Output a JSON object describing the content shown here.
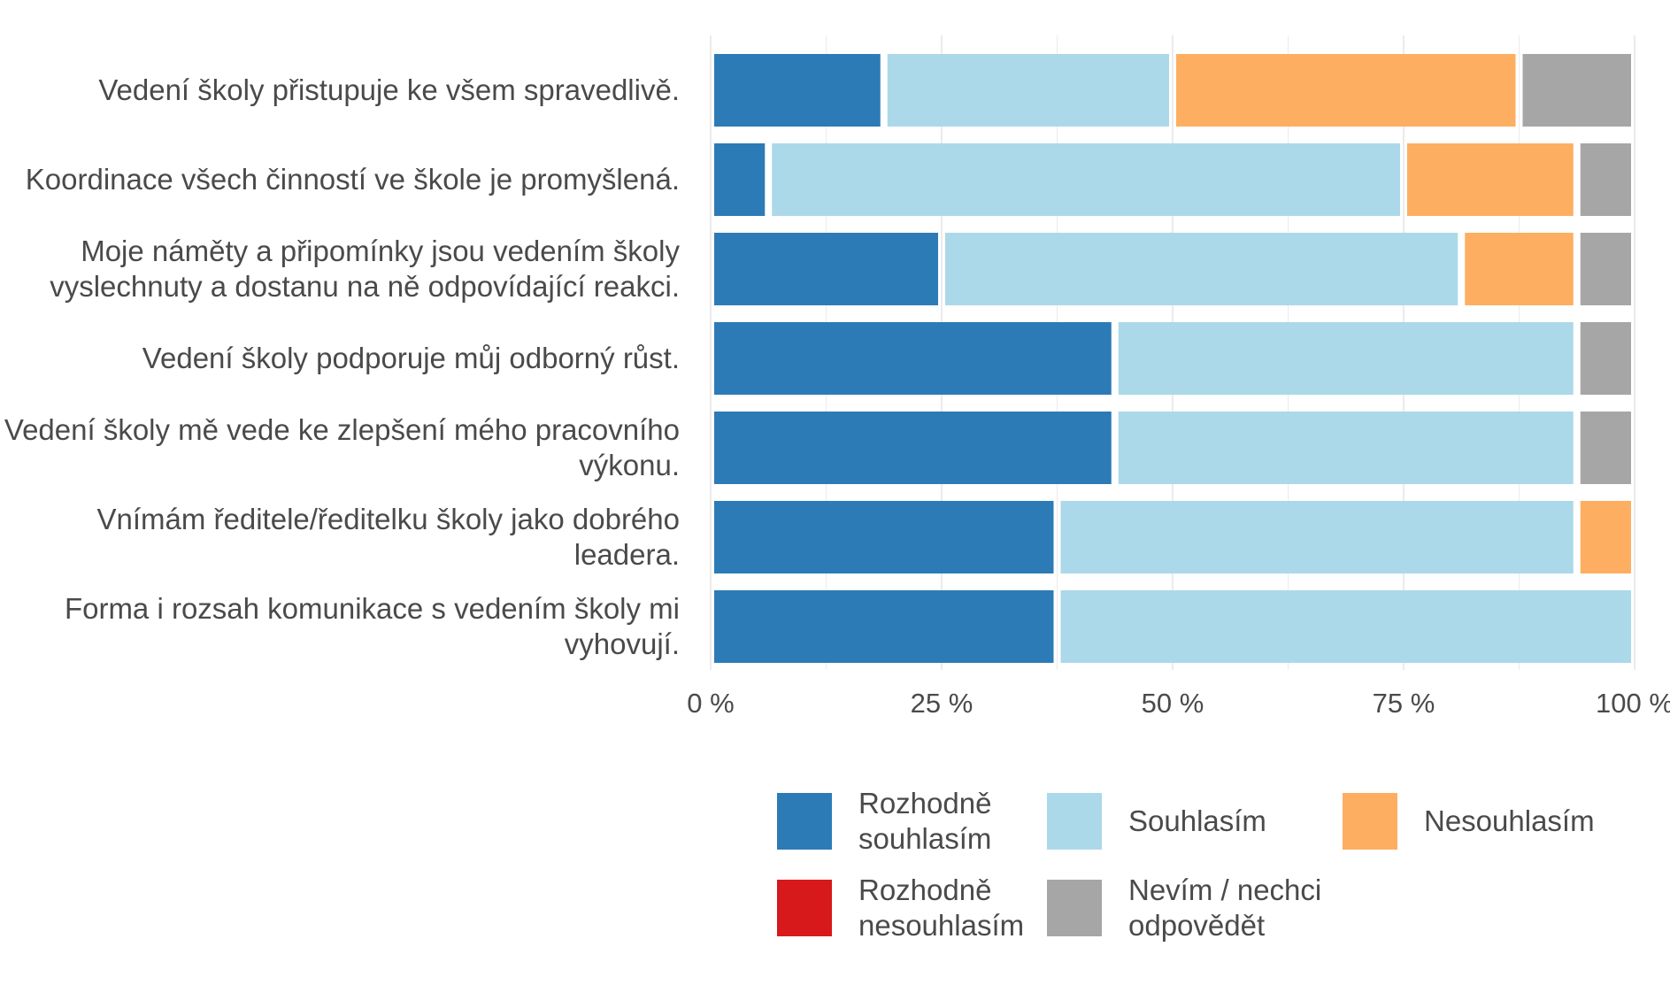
{
  "chart_data": {
    "type": "bar",
    "orientation": "horizontal",
    "stacked": true,
    "title": "",
    "xlabel": "",
    "ylabel": "",
    "xlim": [
      0,
      100
    ],
    "x_ticks": [
      0,
      25,
      50,
      75,
      100
    ],
    "x_tick_labels": [
      "0 %",
      "25 %",
      "50 %",
      "75 %",
      "100 %"
    ],
    "grid": true,
    "legend_position": "bottom",
    "categories": [
      "Vedení školy přistupuje ke všem spravedlivě.",
      "Koordinace všech činností ve škole je promyšlená.",
      "Moje náměty a připomínky jsou vedením školy vyslechnuty a dostanu na ně odpovídající reakci.",
      "Vedení školy podporuje můj odborný růst.",
      "Vedení školy mě vede ke zlepšení mého pracovního výkonu.",
      "Vnímám ředitele/ředitelku školy jako dobrého leadera.",
      "Forma i rozsah komunikace s vedením školy mi vyhovují."
    ],
    "category_label_lines": [
      [
        "Vedení školy přistupuje ke všem spravedlivě."
      ],
      [
        "Koordinace všech činností ve škole je promyšlená."
      ],
      [
        "Moje náměty a připomínky jsou vedením školy",
        "vyslechnuty a dostanu na ně odpovídající reakci."
      ],
      [
        "Vedení školy podporuje můj odborný růst."
      ],
      [
        "Vedení školy mě vede ke zlepšení mého pracovního",
        "výkonu."
      ],
      [
        "Vnímám ředitele/ředitelku školy jako dobrého",
        "leadera."
      ],
      [
        "Forma i rozsah komunikace s vedením školy mi",
        "vyhovují."
      ]
    ],
    "series": [
      {
        "name": "Rozhodně souhlasím",
        "legend_lines": [
          "Rozhodně",
          "souhlasím"
        ],
        "color": "#2c7bb6",
        "values": [
          18.75,
          6.25,
          25.0,
          43.75,
          43.75,
          37.5,
          37.5
        ]
      },
      {
        "name": "Souhlasím",
        "legend_lines": [
          "Souhlasím"
        ],
        "color": "#abd9e9",
        "values": [
          31.25,
          68.75,
          56.25,
          50.0,
          50.0,
          56.25,
          62.5
        ]
      },
      {
        "name": "Nesouhlasím",
        "legend_lines": [
          "Nesouhlasím"
        ],
        "color": "#fdae61",
        "values": [
          37.5,
          18.75,
          12.5,
          0,
          0,
          6.25,
          0
        ]
      },
      {
        "name": "Rozhodně nesouhlasím",
        "legend_lines": [
          "Rozhodně",
          "nesouhlasím"
        ],
        "color": "#d7191c",
        "values": [
          0,
          0,
          0,
          0,
          0,
          0,
          0
        ]
      },
      {
        "name": "Nevím / nechci odpovědět",
        "legend_lines": [
          "Nevím / nechci",
          "odpovědět"
        ],
        "color": "#a6a6a6",
        "values": [
          12.5,
          6.25,
          6.25,
          6.25,
          6.25,
          0,
          0
        ]
      }
    ],
    "stack_order": [
      "Rozhodně souhlasím",
      "Souhlasím",
      "Nesouhlasím",
      "Rozhodně nesouhlasím",
      "Nevím / nechci odpovědět"
    ],
    "legend_order": [
      "Rozhodně souhlasím",
      "Souhlasím",
      "Nesouhlasím",
      "Rozhodně nesouhlasím",
      "Nevím / nechci odpovědět"
    ],
    "gridline_color": "#ebebeb"
  }
}
